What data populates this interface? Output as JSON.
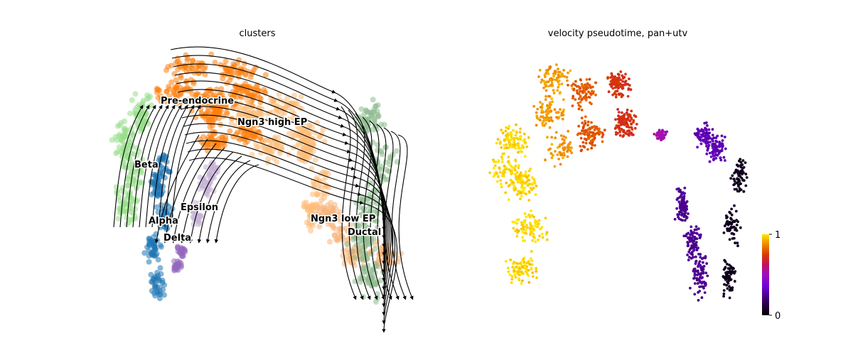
{
  "chart_data": [
    {
      "type": "scatter",
      "title": "clusters",
      "overlay": "velocity-streamlines",
      "axes_visible": false,
      "grid": false,
      "legend": "on-data",
      "categories": [
        "Pre-endocrine",
        "Ngn3 high EP",
        "Beta",
        "Epsilon",
        "Alpha",
        "Delta",
        "Ngn3 low EP",
        "Ductal"
      ],
      "colors": {
        "Pre-endocrine": "#ff7f0e",
        "Ngn3 high EP": "#ffbb78",
        "Beta": "#98df8a",
        "Epsilon": "#c5b0d5",
        "Alpha": "#1f77b4",
        "Delta": "#9467bd",
        "Ngn3 low EP": "#f7b57c",
        "Ductal": "#8fbc8f"
      }
    },
    {
      "type": "scatter",
      "title": "velocity pseudotime, pan+utv",
      "axes_visible": false,
      "grid": false,
      "colormap": "gnuplot",
      "colorbar": {
        "min": 0,
        "max": 1,
        "ticks": [
          "0",
          "1"
        ],
        "placement": "bottom-right"
      }
    }
  ]
}
